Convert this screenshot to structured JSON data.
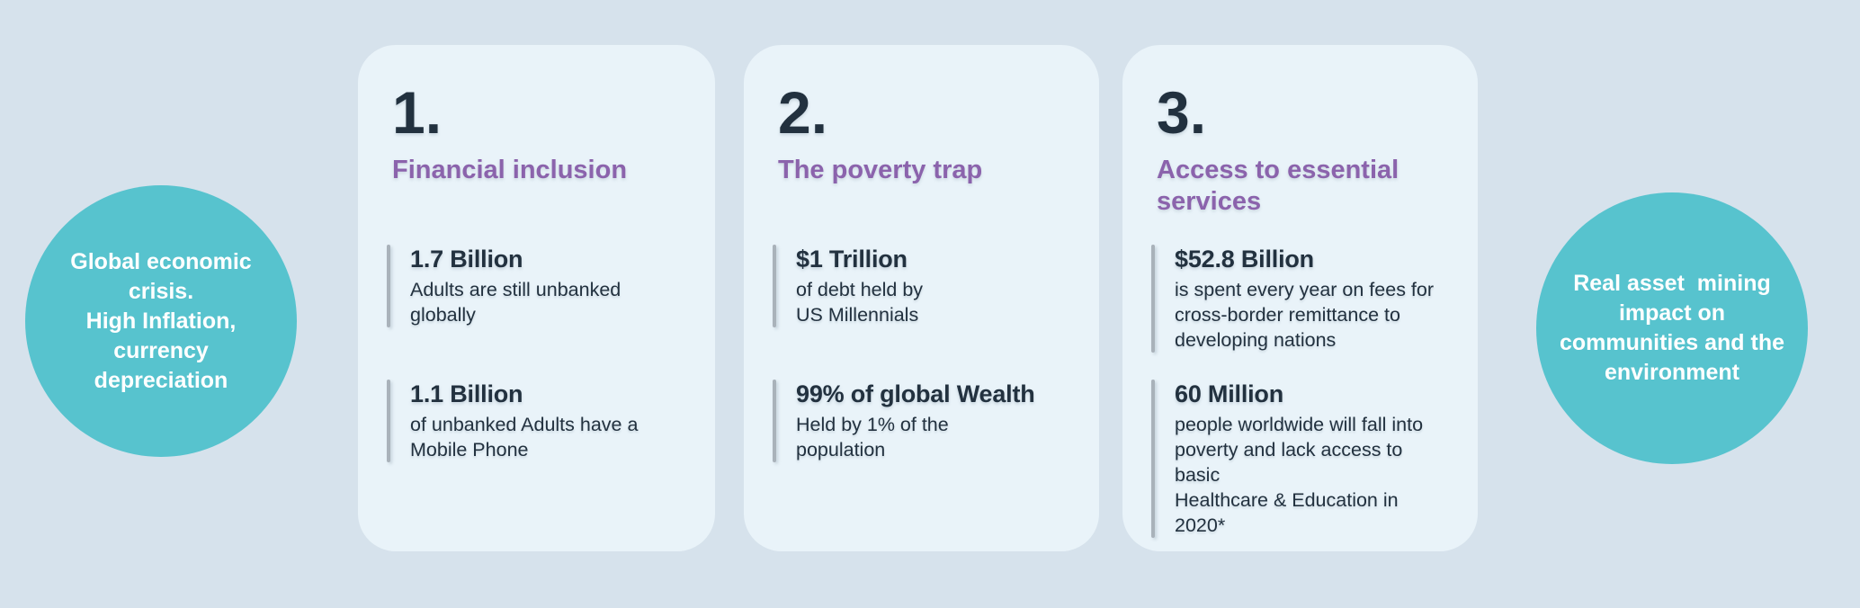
{
  "palette": {
    "bg": "#D6E2EC",
    "card_bg": "#E9F3F9",
    "teal": "#57C3CE",
    "purple": "#8B63AC",
    "dark": "#22313F",
    "bar": "#A9B2BA",
    "circle_text": "#FFFFFF"
  },
  "left_circle": {
    "text": "Global economic\ncrisis.\nHigh Inflation,\ncurrency\ndepreciation"
  },
  "right_circle": {
    "text": "Real asset  mining\nimpact on\ncommunities and the\nenvironment"
  },
  "cards": [
    {
      "number": "1.",
      "title": "Financial inclusion",
      "stats": [
        {
          "value": "1.7 Billion",
          "desc": "Adults are still unbanked\nglobally"
        },
        {
          "value": "1.1 Billion",
          "desc": "of unbanked Adults have a\nMobile Phone"
        }
      ]
    },
    {
      "number": "2.",
      "title": "The poverty trap",
      "stats": [
        {
          "value": "$1 Trillion",
          "desc": "of debt held by\nUS Millennials"
        },
        {
          "value": "99% of global Wealth",
          "desc": "Held by 1% of the\npopulation"
        }
      ]
    },
    {
      "number": "3.",
      "title": "Access to essential\nservices",
      "stats": [
        {
          "value": "$52.8 Billion",
          "desc": "is spent every year on fees for\ncross-border remittance to\ndeveloping nations"
        },
        {
          "value": "60 Million",
          "desc": "people worldwide will fall into\npoverty and lack access to basic\nHealthcare & Education in 2020*"
        }
      ]
    }
  ]
}
